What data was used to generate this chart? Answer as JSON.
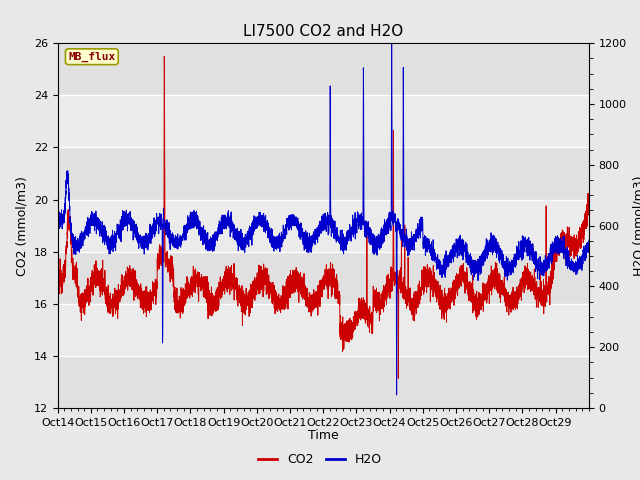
{
  "title": "LI7500 CO2 and H2O",
  "xlabel": "Time",
  "ylabel_left": "CO2 (mmol/m3)",
  "ylabel_right": "H2O (mmol/m3)",
  "ylim_left": [
    12,
    26
  ],
  "ylim_right": [
    0,
    1200
  ],
  "xtick_labels": [
    "Oct 14",
    "Oct 15",
    "Oct 16",
    "Oct 17",
    "Oct 18",
    "Oct 19",
    "Oct 20",
    "Oct 21",
    "Oct 22",
    "Oct 23",
    "Oct 24",
    "Oct 25",
    "Oct 26",
    "Oct 27",
    "Oct 28",
    "Oct 29"
  ],
  "yticks_left": [
    12,
    14,
    16,
    18,
    20,
    22,
    24,
    26
  ],
  "yticks_right": [
    0,
    200,
    400,
    600,
    800,
    1000,
    1200
  ],
  "co2_color": "#cc0000",
  "h2o_color": "#0000cc",
  "bg_color": "#e8e8e8",
  "plot_bg_color": "#f5f5f5",
  "band_colors": [
    "#e8e8e8",
    "#f5f5f5"
  ],
  "annotation_text": "MB_flux",
  "annotation_facecolor": "#ffffcc",
  "annotation_edgecolor": "#999900",
  "annotation_textcolor": "#880000",
  "legend_co2": "CO2",
  "legend_h2o": "H2O",
  "title_fontsize": 11,
  "axis_fontsize": 9,
  "tick_fontsize": 8
}
